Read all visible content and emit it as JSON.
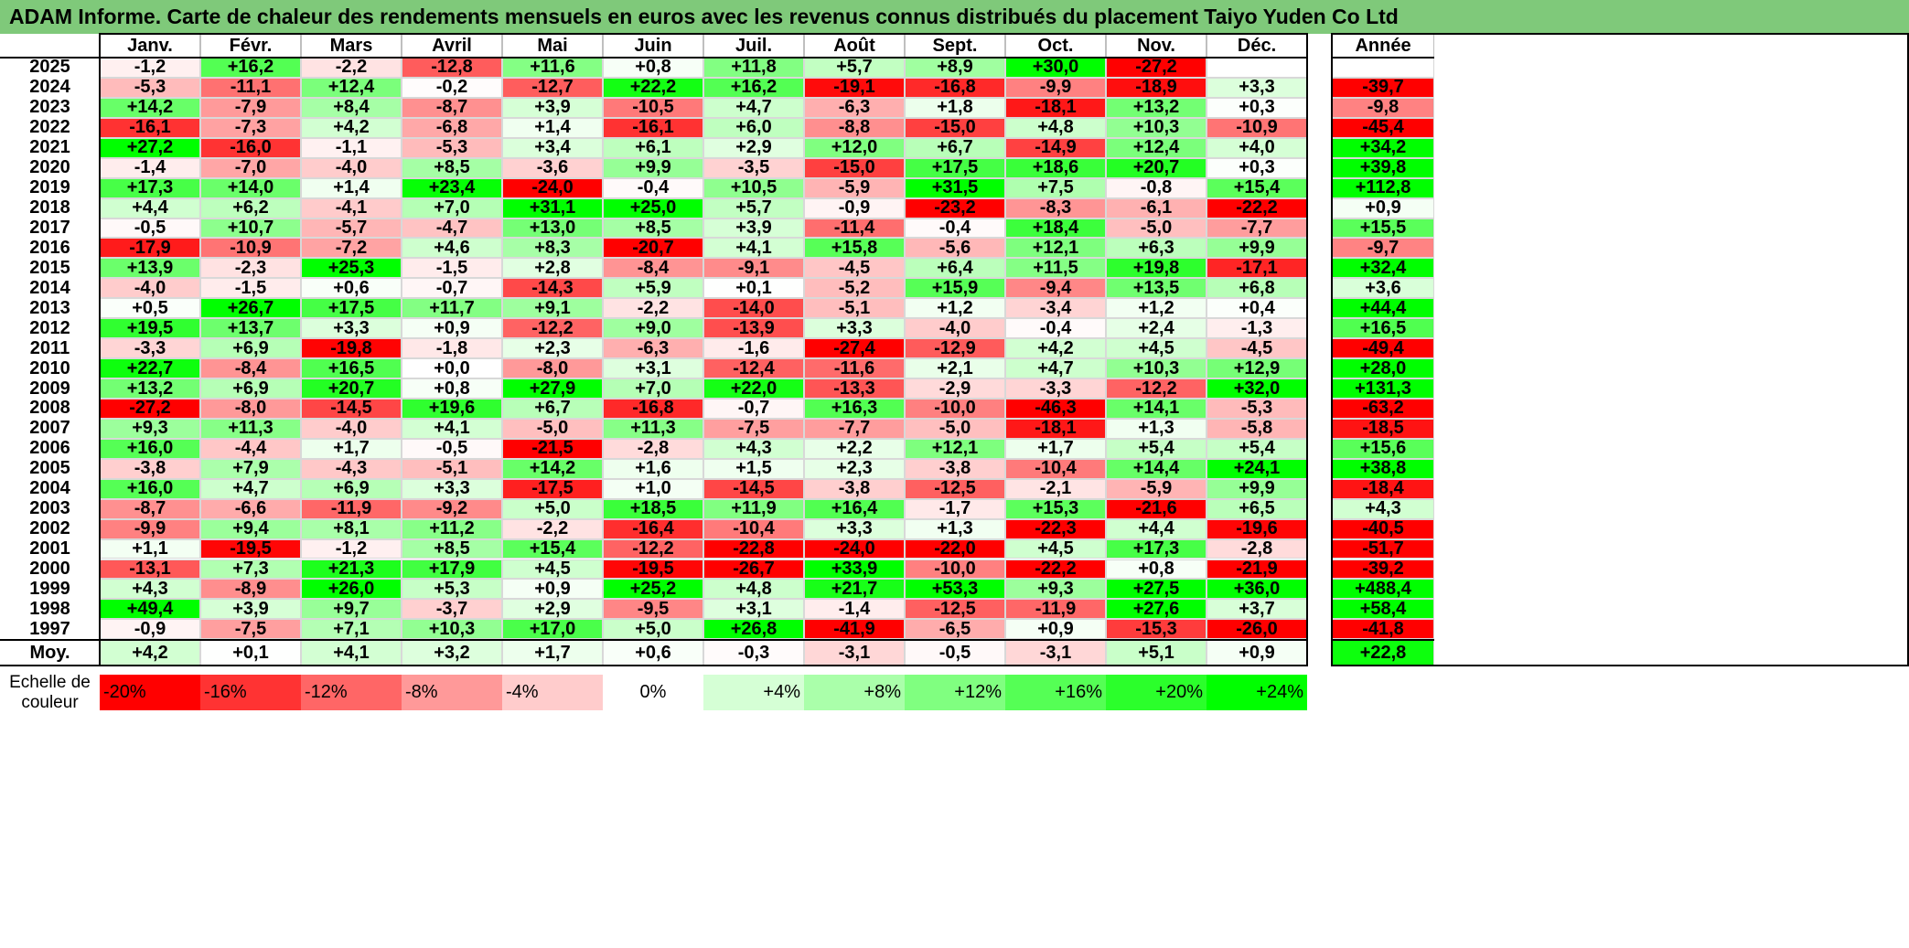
{
  "title": "ADAM Informe. Carte de chaleur des rendements mensuels en euros avec les revenus connus distribués du placement Taiyo Yuden Co Ltd",
  "chart_data": {
    "type": "heatmap",
    "title": "ADAM Informe. Carte de chaleur des rendements mensuels en euros avec les revenus connus distribués du placement Taiyo Yuden Co Ltd",
    "months": [
      "Janv.",
      "Févr.",
      "Mars",
      "Avril",
      "Mai",
      "Juin",
      "Juil.",
      "Août",
      "Sept.",
      "Oct.",
      "Nov.",
      "Déc."
    ],
    "year_header": "Année",
    "avg_label": "Moy.",
    "rows": [
      {
        "year": "2025",
        "values": [
          "-1,2",
          "+16,2",
          "-2,2",
          "-12,8",
          "+11,6",
          "+0,8",
          "+11,8",
          "+5,7",
          "+8,9",
          "+30,0",
          "-27,2",
          ""
        ],
        "annual": ""
      },
      {
        "year": "2024",
        "values": [
          "-5,3",
          "-11,1",
          "+12,4",
          "-0,2",
          "-12,7",
          "+22,2",
          "+16,2",
          "-19,1",
          "-16,8",
          "-9,9",
          "-18,9",
          "+3,3"
        ],
        "annual": "-39,7"
      },
      {
        "year": "2023",
        "values": [
          "+14,2",
          "-7,9",
          "+8,4",
          "-8,7",
          "+3,9",
          "-10,5",
          "+4,7",
          "-6,3",
          "+1,8",
          "-18,1",
          "+13,2",
          "+0,3"
        ],
        "annual": "-9,8"
      },
      {
        "year": "2022",
        "values": [
          "-16,1",
          "-7,3",
          "+4,2",
          "-6,8",
          "+1,4",
          "-16,1",
          "+6,0",
          "-8,8",
          "-15,0",
          "+4,8",
          "+10,3",
          "-10,9"
        ],
        "annual": "-45,4"
      },
      {
        "year": "2021",
        "values": [
          "+27,2",
          "-16,0",
          "-1,1",
          "-5,3",
          "+3,4",
          "+6,1",
          "+2,9",
          "+12,0",
          "+6,7",
          "-14,9",
          "+12,4",
          "+4,0"
        ],
        "annual": "+34,2"
      },
      {
        "year": "2020",
        "values": [
          "-1,4",
          "-7,0",
          "-4,0",
          "+8,5",
          "-3,6",
          "+9,9",
          "-3,5",
          "-15,0",
          "+17,5",
          "+18,6",
          "+20,7",
          "+0,3"
        ],
        "annual": "+39,8"
      },
      {
        "year": "2019",
        "values": [
          "+17,3",
          "+14,0",
          "+1,4",
          "+23,4",
          "-24,0",
          "-0,4",
          "+10,5",
          "-5,9",
          "+31,5",
          "+7,5",
          "-0,8",
          "+15,4"
        ],
        "annual": "+112,8"
      },
      {
        "year": "2018",
        "values": [
          "+4,4",
          "+6,2",
          "-4,1",
          "+7,0",
          "+31,1",
          "+25,0",
          "+5,7",
          "-0,9",
          "-23,2",
          "-8,3",
          "-6,1",
          "-22,2"
        ],
        "annual": "+0,9"
      },
      {
        "year": "2017",
        "values": [
          "-0,5",
          "+10,7",
          "-5,7",
          "-4,7",
          "+13,0",
          "+8,5",
          "+3,9",
          "-11,4",
          "-0,4",
          "+18,4",
          "-5,0",
          "-7,7"
        ],
        "annual": "+15,5"
      },
      {
        "year": "2016",
        "values": [
          "-17,9",
          "-10,9",
          "-7,2",
          "+4,6",
          "+8,3",
          "-20,7",
          "+4,1",
          "+15,8",
          "-5,6",
          "+12,1",
          "+6,3",
          "+9,9"
        ],
        "annual": "-9,7"
      },
      {
        "year": "2015",
        "values": [
          "+13,9",
          "-2,3",
          "+25,3",
          "-1,5",
          "+2,8",
          "-8,4",
          "-9,1",
          "-4,5",
          "+6,4",
          "+11,5",
          "+19,8",
          "-17,1"
        ],
        "annual": "+32,4"
      },
      {
        "year": "2014",
        "values": [
          "-4,0",
          "-1,5",
          "+0,6",
          "-0,7",
          "-14,3",
          "+5,9",
          "+0,1",
          "-5,2",
          "+15,9",
          "-9,4",
          "+13,5",
          "+6,8"
        ],
        "annual": "+3,6"
      },
      {
        "year": "2013",
        "values": [
          "+0,5",
          "+26,7",
          "+17,5",
          "+11,7",
          "+9,1",
          "-2,2",
          "-14,0",
          "-5,1",
          "+1,2",
          "-3,4",
          "+1,2",
          "+0,4"
        ],
        "annual": "+44,4"
      },
      {
        "year": "2012",
        "values": [
          "+19,5",
          "+13,7",
          "+3,3",
          "+0,9",
          "-12,2",
          "+9,0",
          "-13,9",
          "+3,3",
          "-4,0",
          "-0,4",
          "+2,4",
          "-1,3"
        ],
        "annual": "+16,5"
      },
      {
        "year": "2011",
        "values": [
          "-3,3",
          "+6,9",
          "-19,8",
          "-1,8",
          "+2,3",
          "-6,3",
          "-1,6",
          "-27,4",
          "-12,9",
          "+4,2",
          "+4,5",
          "-4,5"
        ],
        "annual": "-49,4"
      },
      {
        "year": "2010",
        "values": [
          "+22,7",
          "-8,4",
          "+16,5",
          "+0,0",
          "-8,0",
          "+3,1",
          "-12,4",
          "-11,6",
          "+2,1",
          "+4,7",
          "+10,3",
          "+12,9"
        ],
        "annual": "+28,0"
      },
      {
        "year": "2009",
        "values": [
          "+13,2",
          "+6,9",
          "+20,7",
          "+0,8",
          "+27,9",
          "+7,0",
          "+22,0",
          "-13,3",
          "-2,9",
          "-3,3",
          "-12,2",
          "+32,0"
        ],
        "annual": "+131,3"
      },
      {
        "year": "2008",
        "values": [
          "-27,2",
          "-8,0",
          "-14,5",
          "+19,6",
          "+6,7",
          "-16,8",
          "-0,7",
          "+16,3",
          "-10,0",
          "-46,3",
          "+14,1",
          "-5,3"
        ],
        "annual": "-63,2"
      },
      {
        "year": "2007",
        "values": [
          "+9,3",
          "+11,3",
          "-4,0",
          "+4,1",
          "-5,0",
          "+11,3",
          "-7,5",
          "-7,7",
          "-5,0",
          "-18,1",
          "+1,3",
          "-5,8"
        ],
        "annual": "-18,5"
      },
      {
        "year": "2006",
        "values": [
          "+16,0",
          "-4,4",
          "+1,7",
          "-0,5",
          "-21,5",
          "-2,8",
          "+4,3",
          "+2,2",
          "+12,1",
          "+1,7",
          "+5,4",
          "+5,4"
        ],
        "annual": "+15,6"
      },
      {
        "year": "2005",
        "values": [
          "-3,8",
          "+7,9",
          "-4,3",
          "-5,1",
          "+14,2",
          "+1,6",
          "+1,5",
          "+2,3",
          "-3,8",
          "-10,4",
          "+14,4",
          "+24,1"
        ],
        "annual": "+38,8"
      },
      {
        "year": "2004",
        "values": [
          "+16,0",
          "+4,7",
          "+6,9",
          "+3,3",
          "-17,5",
          "+1,0",
          "-14,5",
          "-3,8",
          "-12,5",
          "-2,1",
          "-5,9",
          "+9,9"
        ],
        "annual": "-18,4"
      },
      {
        "year": "2003",
        "values": [
          "-8,7",
          "-6,6",
          "-11,9",
          "-9,2",
          "+5,0",
          "+18,5",
          "+11,9",
          "+16,4",
          "-1,7",
          "+15,3",
          "-21,6",
          "+6,5"
        ],
        "annual": "+4,3"
      },
      {
        "year": "2002",
        "values": [
          "-9,9",
          "+9,4",
          "+8,1",
          "+11,2",
          "-2,2",
          "-16,4",
          "-10,4",
          "+3,3",
          "+1,3",
          "-22,3",
          "+4,4",
          "-19,6"
        ],
        "annual": "-40,5"
      },
      {
        "year": "2001",
        "values": [
          "+1,1",
          "-19,5",
          "-1,2",
          "+8,5",
          "+15,4",
          "-12,2",
          "-22,8",
          "-24,0",
          "-22,0",
          "+4,5",
          "+17,3",
          "-2,8"
        ],
        "annual": "-51,7"
      },
      {
        "year": "2000",
        "values": [
          "-13,1",
          "+7,3",
          "+21,3",
          "+17,9",
          "+4,5",
          "-19,5",
          "-26,7",
          "+33,9",
          "-10,0",
          "-22,2",
          "+0,8",
          "-21,9"
        ],
        "annual": "-39,2"
      },
      {
        "year": "1999",
        "values": [
          "+4,3",
          "-8,9",
          "+26,0",
          "+5,3",
          "+0,9",
          "+25,2",
          "+4,8",
          "+21,7",
          "+53,3",
          "+9,3",
          "+27,5",
          "+36,0"
        ],
        "annual": "+488,4"
      },
      {
        "year": "1998",
        "values": [
          "+49,4",
          "+3,9",
          "+9,7",
          "-3,7",
          "+2,9",
          "-9,5",
          "+3,1",
          "-1,4",
          "-12,5",
          "-11,9",
          "+27,6",
          "+3,7"
        ],
        "annual": "+58,4"
      },
      {
        "year": "1997",
        "values": [
          "-0,9",
          "-7,5",
          "+7,1",
          "+10,3",
          "+17,0",
          "+5,0",
          "+26,8",
          "-41,9",
          "-6,5",
          "+0,9",
          "-15,3",
          "-26,0"
        ],
        "annual": "-41,8"
      }
    ],
    "averages": [
      "+4,2",
      "+0,1",
      "+4,1",
      "+3,2",
      "+1,7",
      "+0,6",
      "-0,3",
      "-3,1",
      "-0,5",
      "-3,1",
      "+5,1",
      "+0,9"
    ],
    "avg_annual": "+22,8",
    "scale_label": "Echelle de couleur",
    "scale": [
      "-20%",
      "-16%",
      "-12%",
      "-8%",
      "-4%",
      "0%",
      "+4%",
      "+8%",
      "+12%",
      "+16%",
      "+20%",
      "+24%"
    ],
    "colors": {
      "neg_max": "#ff0000",
      "zero": "#ffffff",
      "pos_max": "#00ff00",
      "title_bg": "#7fc97a"
    }
  }
}
